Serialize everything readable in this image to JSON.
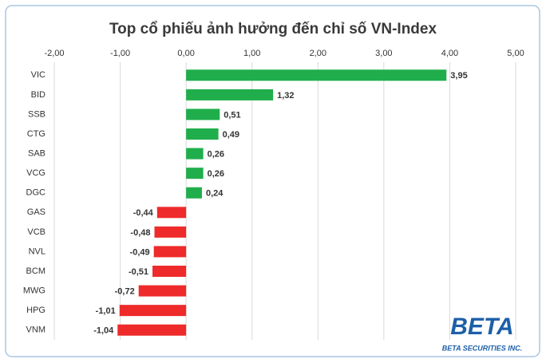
{
  "chart_data": {
    "type": "bar",
    "orientation": "horizontal",
    "title": "Top cổ phiếu ảnh hưởng đến chỉ số VN-Index",
    "categories": [
      "VIC",
      "BID",
      "SSB",
      "CTG",
      "SAB",
      "VCG",
      "DGC",
      "GAS",
      "VCB",
      "NVL",
      "BCM",
      "MWG",
      "HPG",
      "VNM"
    ],
    "values": [
      3.95,
      1.32,
      0.51,
      0.49,
      0.26,
      0.26,
      0.24,
      -0.44,
      -0.48,
      -0.49,
      -0.51,
      -0.72,
      -1.01,
      -1.04
    ],
    "value_labels": [
      "3,95",
      "1,32",
      "0,51",
      "0,49",
      "0,26",
      "0,26",
      "0,24",
      "-0,44",
      "-0,48",
      "-0,49",
      "-0,51",
      "-0,72",
      "-1,01",
      "-1,04"
    ],
    "positive_color": "#1fae4b",
    "negative_color": "#ee2a2a",
    "xlim": [
      -2,
      5
    ],
    "xticks": [
      {
        "value": -2,
        "label": "-2,00"
      },
      {
        "value": -1,
        "label": "-1,00"
      },
      {
        "value": 0,
        "label": "0,00"
      },
      {
        "value": 1,
        "label": "1,00"
      },
      {
        "value": 2,
        "label": "2,00"
      },
      {
        "value": 3,
        "label": "3,00"
      },
      {
        "value": 4,
        "label": "4,00"
      },
      {
        "value": 5,
        "label": "5,00"
      }
    ],
    "grid": true,
    "logo": {
      "name": "BETA",
      "subtitle": "BETA SECURITIES INC."
    }
  }
}
